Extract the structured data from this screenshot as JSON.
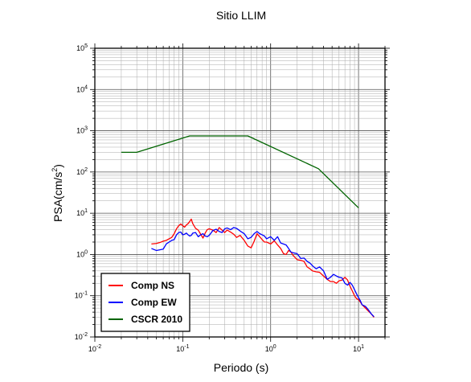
{
  "chart_data": {
    "type": "line",
    "title": "Sitio LLIM",
    "xlabel": "Periodo (s)",
    "ylabel_base": "PSA(cm/s",
    "ylabel_sup": "2",
    "ylabel_end": ")",
    "xscale": "log",
    "yscale": "log",
    "xlim": [
      0.01,
      20
    ],
    "ylim": [
      0.01,
      100000
    ],
    "grid": true,
    "legend_position": "bottom-left",
    "x_ticks": [
      {
        "base": "10",
        "exp": "-2",
        "value": 0.01
      },
      {
        "base": "10",
        "exp": "-1",
        "value": 0.1
      },
      {
        "base": "10",
        "exp": "0",
        "value": 1
      },
      {
        "base": "10",
        "exp": "1",
        "value": 10
      }
    ],
    "y_ticks": [
      {
        "base": "10",
        "exp": "-2",
        "value": 0.01
      },
      {
        "base": "10",
        "exp": "-1",
        "value": 0.1
      },
      {
        "base": "10",
        "exp": "0",
        "value": 1
      },
      {
        "base": "10",
        "exp": "1",
        "value": 10
      },
      {
        "base": "10",
        "exp": "2",
        "value": 100
      },
      {
        "base": "10",
        "exp": "3",
        "value": 1000
      },
      {
        "base": "10",
        "exp": "4",
        "value": 10000
      },
      {
        "base": "10",
        "exp": "5",
        "value": 100000
      }
    ],
    "series": [
      {
        "name": "Comp NS",
        "color": "#ff0000",
        "points": [
          [
            0.044,
            1.8
          ],
          [
            0.05,
            1.85
          ],
          [
            0.055,
            1.95
          ],
          [
            0.06,
            2.1
          ],
          [
            0.065,
            2.2
          ],
          [
            0.07,
            2.4
          ],
          [
            0.075,
            2.6
          ],
          [
            0.08,
            3.2
          ],
          [
            0.085,
            4.2
          ],
          [
            0.09,
            5.0
          ],
          [
            0.095,
            5.5
          ],
          [
            0.1,
            5.0
          ],
          [
            0.105,
            4.6
          ],
          [
            0.11,
            5.2
          ],
          [
            0.115,
            5.6
          ],
          [
            0.12,
            6.3
          ],
          [
            0.125,
            7.2
          ],
          [
            0.13,
            5.6
          ],
          [
            0.14,
            4.3
          ],
          [
            0.15,
            3.9
          ],
          [
            0.16,
            3.1
          ],
          [
            0.17,
            2.5
          ],
          [
            0.18,
            3.3
          ],
          [
            0.19,
            4.0
          ],
          [
            0.2,
            4.2
          ],
          [
            0.22,
            3.9
          ],
          [
            0.24,
            3.4
          ],
          [
            0.26,
            4.5
          ],
          [
            0.28,
            3.9
          ],
          [
            0.3,
            3.4
          ],
          [
            0.32,
            3.9
          ],
          [
            0.35,
            3.5
          ],
          [
            0.38,
            3.1
          ],
          [
            0.41,
            2.6
          ],
          [
            0.45,
            2.9
          ],
          [
            0.5,
            2.2
          ],
          [
            0.55,
            1.6
          ],
          [
            0.6,
            1.45
          ],
          [
            0.65,
            2.1
          ],
          [
            0.7,
            3.2
          ],
          [
            0.75,
            2.7
          ],
          [
            0.8,
            2.3
          ],
          [
            0.85,
            2.0
          ],
          [
            0.9,
            2.0
          ],
          [
            1.0,
            1.8
          ],
          [
            1.1,
            2.15
          ],
          [
            1.2,
            1.7
          ],
          [
            1.3,
            1.4
          ],
          [
            1.4,
            1.05
          ],
          [
            1.5,
            1.0
          ],
          [
            1.6,
            1.25
          ],
          [
            1.7,
            1.15
          ],
          [
            1.8,
            0.95
          ],
          [
            2.0,
            0.75
          ],
          [
            2.2,
            0.72
          ],
          [
            2.4,
            0.68
          ],
          [
            2.6,
            0.5
          ],
          [
            2.8,
            0.45
          ],
          [
            3.0,
            0.4
          ],
          [
            3.3,
            0.38
          ],
          [
            3.6,
            0.37
          ],
          [
            4.0,
            0.3
          ],
          [
            4.4,
            0.25
          ],
          [
            4.8,
            0.22
          ],
          [
            5.2,
            0.22
          ],
          [
            5.6,
            0.2
          ],
          [
            6.0,
            0.23
          ],
          [
            6.5,
            0.24
          ],
          [
            7.0,
            0.28
          ],
          [
            7.5,
            0.24
          ],
          [
            8.0,
            0.17
          ],
          [
            8.5,
            0.13
          ],
          [
            9.0,
            0.1
          ],
          [
            9.5,
            0.085
          ],
          [
            10.0,
            0.08
          ],
          [
            10.5,
            0.07
          ],
          [
            11.0,
            0.06
          ],
          [
            12.0,
            0.05
          ],
          [
            13.0,
            0.042
          ],
          [
            14.0,
            0.036
          ],
          [
            15.0,
            0.03
          ]
        ]
      },
      {
        "name": "Comp EW",
        "color": "#0000ff",
        "points": [
          [
            0.044,
            1.4
          ],
          [
            0.05,
            1.25
          ],
          [
            0.055,
            1.3
          ],
          [
            0.06,
            1.35
          ],
          [
            0.065,
            1.8
          ],
          [
            0.07,
            2.0
          ],
          [
            0.075,
            2.2
          ],
          [
            0.08,
            2.3
          ],
          [
            0.085,
            3.0
          ],
          [
            0.09,
            3.4
          ],
          [
            0.095,
            3.5
          ],
          [
            0.1,
            3.0
          ],
          [
            0.105,
            3.1
          ],
          [
            0.11,
            3.3
          ],
          [
            0.115,
            3.0
          ],
          [
            0.12,
            2.8
          ],
          [
            0.125,
            2.9
          ],
          [
            0.13,
            3.3
          ],
          [
            0.14,
            3.4
          ],
          [
            0.15,
            2.7
          ],
          [
            0.16,
            3.0
          ],
          [
            0.17,
            3.2
          ],
          [
            0.18,
            2.8
          ],
          [
            0.19,
            2.7
          ],
          [
            0.2,
            2.9
          ],
          [
            0.22,
            3.8
          ],
          [
            0.24,
            4.1
          ],
          [
            0.26,
            3.6
          ],
          [
            0.28,
            3.4
          ],
          [
            0.3,
            4.2
          ],
          [
            0.32,
            4.4
          ],
          [
            0.35,
            4.0
          ],
          [
            0.38,
            4.5
          ],
          [
            0.41,
            4.3
          ],
          [
            0.45,
            3.7
          ],
          [
            0.5,
            3.2
          ],
          [
            0.55,
            2.4
          ],
          [
            0.6,
            2.6
          ],
          [
            0.65,
            3.2
          ],
          [
            0.7,
            3.6
          ],
          [
            0.75,
            3.2
          ],
          [
            0.8,
            3.0
          ],
          [
            0.85,
            2.8
          ],
          [
            0.9,
            2.4
          ],
          [
            1.0,
            2.7
          ],
          [
            1.1,
            2.2
          ],
          [
            1.2,
            2.7
          ],
          [
            1.3,
            1.9
          ],
          [
            1.4,
            1.8
          ],
          [
            1.5,
            1.7
          ],
          [
            1.6,
            1.4
          ],
          [
            1.7,
            1.15
          ],
          [
            1.8,
            1.1
          ],
          [
            2.0,
            1.05
          ],
          [
            2.2,
            0.8
          ],
          [
            2.4,
            0.82
          ],
          [
            2.6,
            0.68
          ],
          [
            2.8,
            0.62
          ],
          [
            3.0,
            0.53
          ],
          [
            3.3,
            0.45
          ],
          [
            3.6,
            0.5
          ],
          [
            4.0,
            0.4
          ],
          [
            4.4,
            0.25
          ],
          [
            4.8,
            0.28
          ],
          [
            5.2,
            0.33
          ],
          [
            5.6,
            0.3
          ],
          [
            6.0,
            0.28
          ],
          [
            6.5,
            0.27
          ],
          [
            7.0,
            0.2
          ],
          [
            7.5,
            0.18
          ],
          [
            8.0,
            0.21
          ],
          [
            8.5,
            0.18
          ],
          [
            9.0,
            0.14
          ],
          [
            9.5,
            0.11
          ],
          [
            10.0,
            0.09
          ],
          [
            10.5,
            0.075
          ],
          [
            11.0,
            0.06
          ],
          [
            12.0,
            0.055
          ],
          [
            13.0,
            0.045
          ],
          [
            14.0,
            0.036
          ],
          [
            15.0,
            0.031
          ]
        ]
      },
      {
        "name": "CSCR 2010",
        "color": "#006400",
        "points": [
          [
            0.02,
            300
          ],
          [
            0.03,
            300
          ],
          [
            0.12,
            750
          ],
          [
            0.55,
            750
          ],
          [
            3.5,
            120
          ],
          [
            10.0,
            13.5
          ]
        ]
      }
    ]
  }
}
